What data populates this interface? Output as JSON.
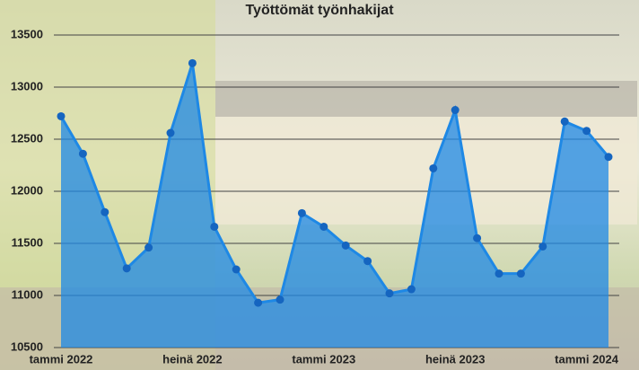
{
  "chart_data": {
    "type": "area",
    "title": "Työttömät työnhakijat",
    "categories": [
      "tammi 2022",
      null,
      null,
      null,
      null,
      null,
      "heinä 2022",
      null,
      null,
      null,
      null,
      null,
      "tammi 2023",
      null,
      null,
      null,
      null,
      null,
      "heinä 2023",
      null,
      null,
      null,
      null,
      null,
      "tammi 2024",
      null
    ],
    "values": [
      12720,
      12360,
      11800,
      11260,
      11460,
      12560,
      13230,
      11660,
      11250,
      10930,
      10960,
      11790,
      11660,
      11480,
      11330,
      11020,
      11060,
      12220,
      12780,
      11550,
      11210,
      11210,
      11470,
      12670,
      12580,
      12330
    ],
    "color": "#1e88e5",
    "ylim": [
      10500,
      13500
    ],
    "yticks": [
      10500,
      11000,
      11500,
      12000,
      12500,
      13000,
      13500
    ],
    "grid": true
  }
}
